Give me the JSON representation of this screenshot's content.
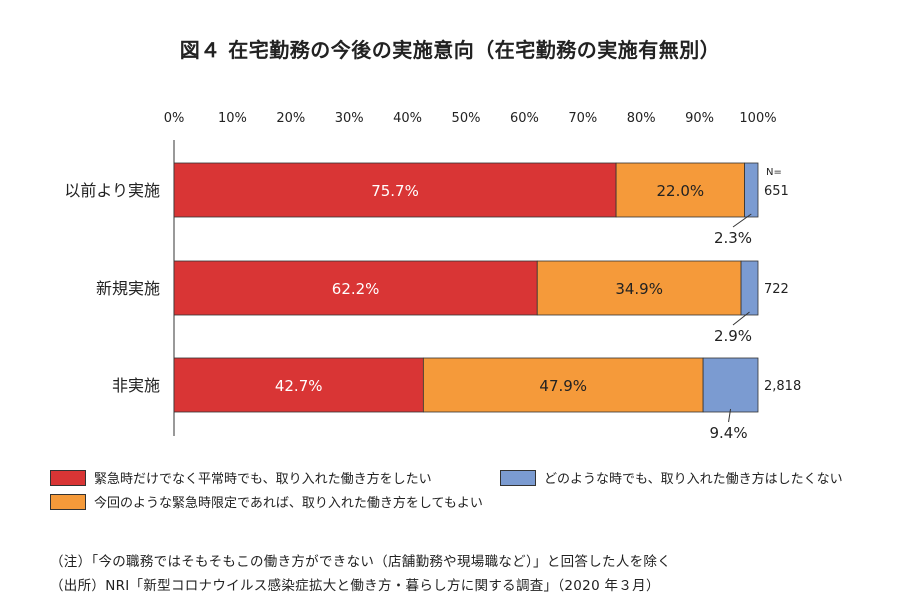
{
  "chart_data": {
    "type": "bar",
    "stacked": true,
    "orientation": "horizontal",
    "title": "図４ 在宅勤務の今後の実施意向（在宅勤務の実施有無別）",
    "xlim": [
      0,
      100
    ],
    "x_ticks": [
      "0%",
      "10%",
      "20%",
      "30%",
      "40%",
      "50%",
      "60%",
      "70%",
      "80%",
      "90%",
      "100%"
    ],
    "categories": [
      "以前より実施",
      "新規実施",
      "非実施"
    ],
    "n_header": "N=",
    "n_values": [
      "651",
      "722",
      "2,818"
    ],
    "series": [
      {
        "name": "緊急時だけでなく平常時でも、取り入れた働き方をしたい",
        "color": "#d93535",
        "values": [
          75.7,
          62.2,
          42.7
        ],
        "labels": [
          "75.7%",
          "62.2%",
          "42.7%"
        ]
      },
      {
        "name": "今回のような緊急時限定であれば、取り入れた働き方をしてもよい",
        "color": "#f59a3a",
        "values": [
          22.0,
          34.9,
          47.9
        ],
        "labels": [
          "22.0%",
          "34.9%",
          "47.9%"
        ]
      },
      {
        "name": "どのような時でも、取り入れた働き方はしたくない",
        "color": "#7b9bd1",
        "values": [
          2.3,
          2.9,
          9.4
        ],
        "labels": [
          "2.3%",
          "2.9%",
          "9.4%"
        ]
      }
    ]
  },
  "notes": {
    "note": "（注）「今の職務ではそもそもこの働き方ができない（店舗勤務や現場職など）」と回答した人を除く",
    "source": "（出所）NRI「新型コロナウイルス感染症拡大と働き方・暮らし方に関する調査」（2020 年３月）"
  }
}
